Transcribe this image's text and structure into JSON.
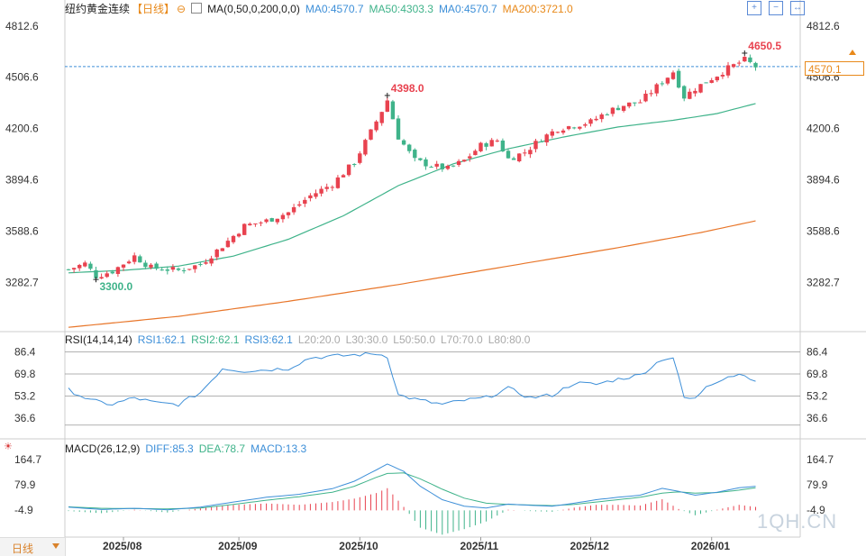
{
  "header": {
    "title": "纽约黄金连续",
    "period": "【日线】",
    "ma_label": "MA(0,50,0,200,0,0)",
    "ma0_a": "MA0:4570.7",
    "ma50": "MA50:4303.3",
    "ma0_b": "MA0:4570.7",
    "ma200": "MA200:3721.0"
  },
  "rsi_header": {
    "label": "RSI(14,14,14)",
    "rsi1": "RSI1:62.1",
    "rsi2": "RSI2:62.1",
    "rsi3": "RSI3:62.1",
    "l20": "L20:20.0",
    "l30": "L30:30.0",
    "l50": "L50:50.0",
    "l70": "L70:70.0",
    "l80": "L80:80.0"
  },
  "macd_header": {
    "label": "MACD(26,12,9)",
    "diff": "DIFF:85.3",
    "dea": "DEA:78.7",
    "macd": "MACD:13.3"
  },
  "current_price": "4570.1",
  "bottom_tab": "日线",
  "watermark": "1QH.CN",
  "colors": {
    "up": "#e8424f",
    "down": "#3fb38a",
    "ma50": "#3fb38a",
    "ma200": "#e8762a",
    "blue": "#3d8fd8",
    "orange": "#e8891a"
  },
  "chart_data": {
    "type": "candlestick",
    "price_axis": {
      "ticks": [
        "4812.6",
        "4506.6",
        "4200.6",
        "3894.6",
        "3588.6",
        "3282.7"
      ],
      "range": [
        3000,
        4860
      ]
    },
    "rsi_axis": {
      "ticks": [
        "86.4",
        "69.8",
        "53.2",
        "36.6"
      ]
    },
    "macd_axis": {
      "ticks": [
        "164.7",
        "79.9",
        "-4.9"
      ]
    },
    "x_ticks": [
      {
        "label": "2025/08",
        "index": 10
      },
      {
        "label": "2025/09",
        "index": 31
      },
      {
        "label": "2025/10",
        "index": 53
      },
      {
        "label": "2025/11",
        "index": 75
      },
      {
        "label": "2025/12",
        "index": 95
      },
      {
        "label": "2026/01",
        "index": 117
      }
    ],
    "annotations": [
      {
        "label": "3300.0",
        "index": 5,
        "value": 3300.0,
        "pos": "low"
      },
      {
        "label": "4398.0",
        "index": 58,
        "value": 4398.0,
        "pos": "high"
      },
      {
        "label": "4650.5",
        "index": 123,
        "value": 4650.5,
        "pos": "high"
      }
    ],
    "anchors": [
      [
        0,
        3360
      ],
      [
        3,
        3395
      ],
      [
        5,
        3320
      ],
      [
        8,
        3350
      ],
      [
        12,
        3440
      ],
      [
        15,
        3370
      ],
      [
        20,
        3355
      ],
      [
        24,
        3390
      ],
      [
        28,
        3500
      ],
      [
        32,
        3620
      ],
      [
        36,
        3650
      ],
      [
        40,
        3700
      ],
      [
        44,
        3800
      ],
      [
        48,
        3870
      ],
      [
        52,
        4000
      ],
      [
        55,
        4180
      ],
      [
        58,
        4370
      ],
      [
        60,
        4150
      ],
      [
        63,
        4010
      ],
      [
        66,
        3980
      ],
      [
        69,
        3960
      ],
      [
        72,
        4010
      ],
      [
        75,
        4100
      ],
      [
        78,
        4130
      ],
      [
        80,
        4020
      ],
      [
        83,
        4060
      ],
      [
        86,
        4140
      ],
      [
        89,
        4200
      ],
      [
        92,
        4220
      ],
      [
        95,
        4240
      ],
      [
        98,
        4300
      ],
      [
        101,
        4340
      ],
      [
        104,
        4360
      ],
      [
        107,
        4450
      ],
      [
        110,
        4540
      ],
      [
        112,
        4390
      ],
      [
        114,
        4440
      ],
      [
        117,
        4500
      ],
      [
        120,
        4560
      ],
      [
        123,
        4610
      ],
      [
        125,
        4570
      ]
    ],
    "ma50_anchors": [
      [
        0,
        3340
      ],
      [
        10,
        3355
      ],
      [
        20,
        3380
      ],
      [
        30,
        3440
      ],
      [
        40,
        3540
      ],
      [
        50,
        3680
      ],
      [
        60,
        3860
      ],
      [
        70,
        3990
      ],
      [
        80,
        4080
      ],
      [
        90,
        4150
      ],
      [
        100,
        4210
      ],
      [
        110,
        4250
      ],
      [
        118,
        4290
      ],
      [
        125,
        4350
      ]
    ],
    "ma200_anchors": [
      [
        0,
        3015
      ],
      [
        20,
        3080
      ],
      [
        40,
        3170
      ],
      [
        60,
        3270
      ],
      [
        80,
        3380
      ],
      [
        100,
        3490
      ],
      [
        115,
        3580
      ],
      [
        125,
        3650
      ]
    ],
    "rsi_anchors": [
      [
        0,
        58
      ],
      [
        4,
        50
      ],
      [
        8,
        47
      ],
      [
        12,
        52
      ],
      [
        16,
        48
      ],
      [
        20,
        47
      ],
      [
        24,
        56
      ],
      [
        28,
        74
      ],
      [
        32,
        72
      ],
      [
        36,
        73
      ],
      [
        40,
        74
      ],
      [
        44,
        82
      ],
      [
        48,
        83
      ],
      [
        52,
        84
      ],
      [
        56,
        85
      ],
      [
        58,
        83
      ],
      [
        60,
        54
      ],
      [
        64,
        50
      ],
      [
        68,
        47
      ],
      [
        72,
        50
      ],
      [
        76,
        52
      ],
      [
        80,
        59
      ],
      [
        84,
        52
      ],
      [
        88,
        54
      ],
      [
        92,
        63
      ],
      [
        96,
        62
      ],
      [
        100,
        66
      ],
      [
        104,
        69
      ],
      [
        108,
        81
      ],
      [
        110,
        82
      ],
      [
        112,
        52
      ],
      [
        114,
        51
      ],
      [
        116,
        61
      ],
      [
        120,
        68
      ],
      [
        123,
        70
      ],
      [
        125,
        63
      ]
    ],
    "diff_anchors": [
      [
        0,
        5
      ],
      [
        6,
        -3
      ],
      [
        12,
        1
      ],
      [
        18,
        -4
      ],
      [
        24,
        5
      ],
      [
        30,
        22
      ],
      [
        36,
        38
      ],
      [
        42,
        48
      ],
      [
        48,
        67
      ],
      [
        52,
        92
      ],
      [
        56,
        130
      ],
      [
        58,
        150
      ],
      [
        61,
        125
      ],
      [
        64,
        75
      ],
      [
        68,
        30
      ],
      [
        72,
        8
      ],
      [
        76,
        2
      ],
      [
        80,
        15
      ],
      [
        84,
        11
      ],
      [
        88,
        8
      ],
      [
        92,
        18
      ],
      [
        96,
        30
      ],
      [
        100,
        38
      ],
      [
        104,
        45
      ],
      [
        108,
        68
      ],
      [
        111,
        58
      ],
      [
        114,
        45
      ],
      [
        118,
        55
      ],
      [
        122,
        70
      ],
      [
        125,
        75
      ]
    ],
    "dea_anchors": [
      [
        0,
        6
      ],
      [
        6,
        1
      ],
      [
        12,
        0
      ],
      [
        18,
        -1
      ],
      [
        24,
        2
      ],
      [
        30,
        14
      ],
      [
        36,
        28
      ],
      [
        42,
        40
      ],
      [
        48,
        55
      ],
      [
        52,
        75
      ],
      [
        56,
        105
      ],
      [
        58,
        118
      ],
      [
        61,
        120
      ],
      [
        64,
        100
      ],
      [
        68,
        65
      ],
      [
        72,
        35
      ],
      [
        76,
        18
      ],
      [
        80,
        14
      ],
      [
        84,
        12
      ],
      [
        88,
        10
      ],
      [
        92,
        14
      ],
      [
        96,
        22
      ],
      [
        100,
        30
      ],
      [
        104,
        38
      ],
      [
        108,
        52
      ],
      [
        111,
        56
      ],
      [
        114,
        52
      ],
      [
        118,
        54
      ],
      [
        122,
        62
      ],
      [
        125,
        70
      ]
    ]
  }
}
